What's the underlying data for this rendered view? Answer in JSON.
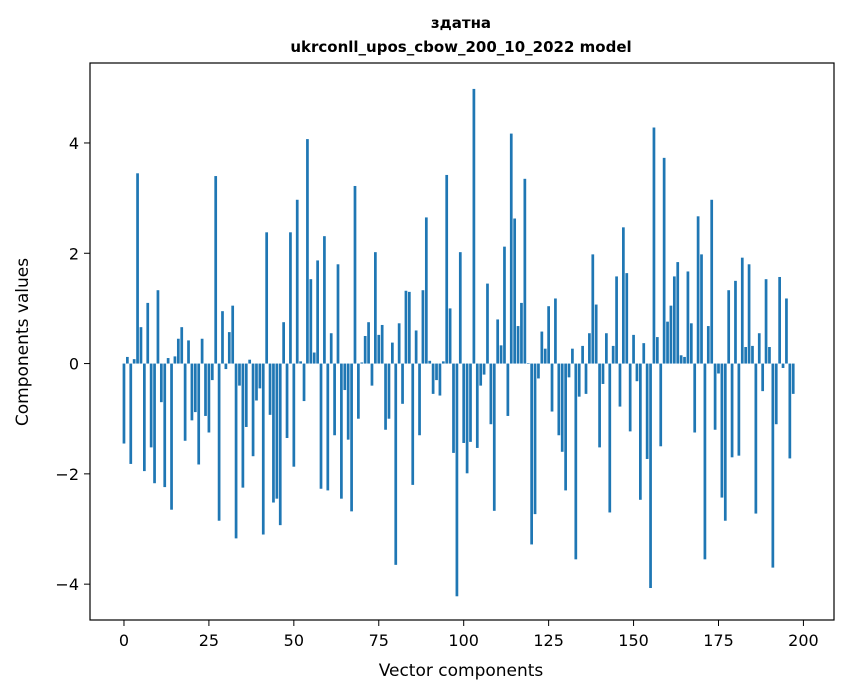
{
  "chart_data": {
    "type": "bar",
    "title": "здатна",
    "subtitle": "ukrconll_upos_cbow_200_10_2022 model",
    "xlabel": "Vector components",
    "ylabel": "Components values",
    "xlim": [
      -10,
      209
    ],
    "ylim": [
      -4.65,
      5.45
    ],
    "xticks": [
      0,
      25,
      50,
      75,
      100,
      125,
      150,
      175,
      200
    ],
    "yticks": [
      -4,
      -2,
      0,
      2,
      4
    ],
    "xtick_labels": [
      "0",
      "25",
      "50",
      "75",
      "100",
      "125",
      "150",
      "175",
      "200"
    ],
    "ytick_labels": [
      "−4",
      "−2",
      "0",
      "2",
      "4"
    ],
    "grid": false,
    "bar_color": "#1f77b4",
    "values": [
      -1.45,
      0.12,
      -1.82,
      0.08,
      3.45,
      0.66,
      -1.95,
      1.1,
      -1.52,
      -2.17,
      1.33,
      -0.7,
      -2.24,
      0.1,
      -2.65,
      0.13,
      0.45,
      0.66,
      -1.4,
      0.42,
      -1.03,
      -0.88,
      -1.83,
      0.45,
      -0.95,
      -1.25,
      -0.3,
      3.4,
      -2.85,
      0.95,
      -0.1,
      0.57,
      1.05,
      -3.17,
      -0.4,
      -2.25,
      -1.15,
      0.07,
      -1.68,
      -0.67,
      -0.45,
      -3.1,
      2.38,
      -0.93,
      -2.52,
      -2.45,
      -2.93,
      0.75,
      -1.35,
      2.38,
      -1.87,
      2.97,
      0.04,
      -0.68,
      4.07,
      1.53,
      0.2,
      1.87,
      -2.27,
      2.31,
      -2.3,
      0.55,
      -1.3,
      1.8,
      -2.45,
      -0.48,
      -1.38,
      -2.68,
      3.22,
      -1.0,
      0.02,
      0.5,
      0.75,
      -0.4,
      2.02,
      0.52,
      0.7,
      -1.2,
      -1.0,
      0.38,
      -3.65,
      0.73,
      -0.73,
      1.32,
      1.3,
      -2.2,
      0.6,
      -1.3,
      1.33,
      2.65,
      0.05,
      -0.55,
      -0.3,
      -0.58,
      0.04,
      3.42,
      1.0,
      -1.62,
      -4.22,
      2.02,
      -1.44,
      -1.99,
      -1.42,
      4.98,
      -1.53,
      -0.4,
      -0.2,
      1.45,
      -1.1,
      -2.67,
      0.8,
      0.33,
      2.12,
      -0.95,
      4.17,
      2.63,
      0.68,
      1.1,
      3.35,
      0.01,
      -3.28,
      -2.73,
      -0.27,
      0.58,
      0.27,
      1.04,
      -0.87,
      1.18,
      -1.3,
      -1.6,
      -2.3,
      -0.25,
      0.27,
      -3.55,
      -0.6,
      0.32,
      -0.55,
      0.55,
      1.98,
      1.07,
      -1.52,
      -0.37,
      0.55,
      -2.7,
      0.32,
      1.58,
      -0.78,
      2.47,
      1.64,
      -1.23,
      0.52,
      -0.32,
      -2.47,
      0.37,
      -1.73,
      -4.07,
      4.28,
      0.48,
      -1.5,
      3.73,
      0.76,
      1.05,
      1.58,
      1.84,
      0.15,
      0.12,
      1.67,
      0.73,
      -1.25,
      2.67,
      1.98,
      -3.55,
      0.68,
      2.97,
      -1.2,
      -0.18,
      -2.43,
      -2.85,
      1.33,
      -1.7,
      1.5,
      -1.67,
      1.92,
      0.3,
      1.8,
      0.32,
      -2.72,
      0.55,
      -0.5,
      1.53,
      0.3,
      -3.7,
      -1.1,
      1.57,
      -0.08,
      1.18,
      -1.72,
      -0.55
    ]
  }
}
